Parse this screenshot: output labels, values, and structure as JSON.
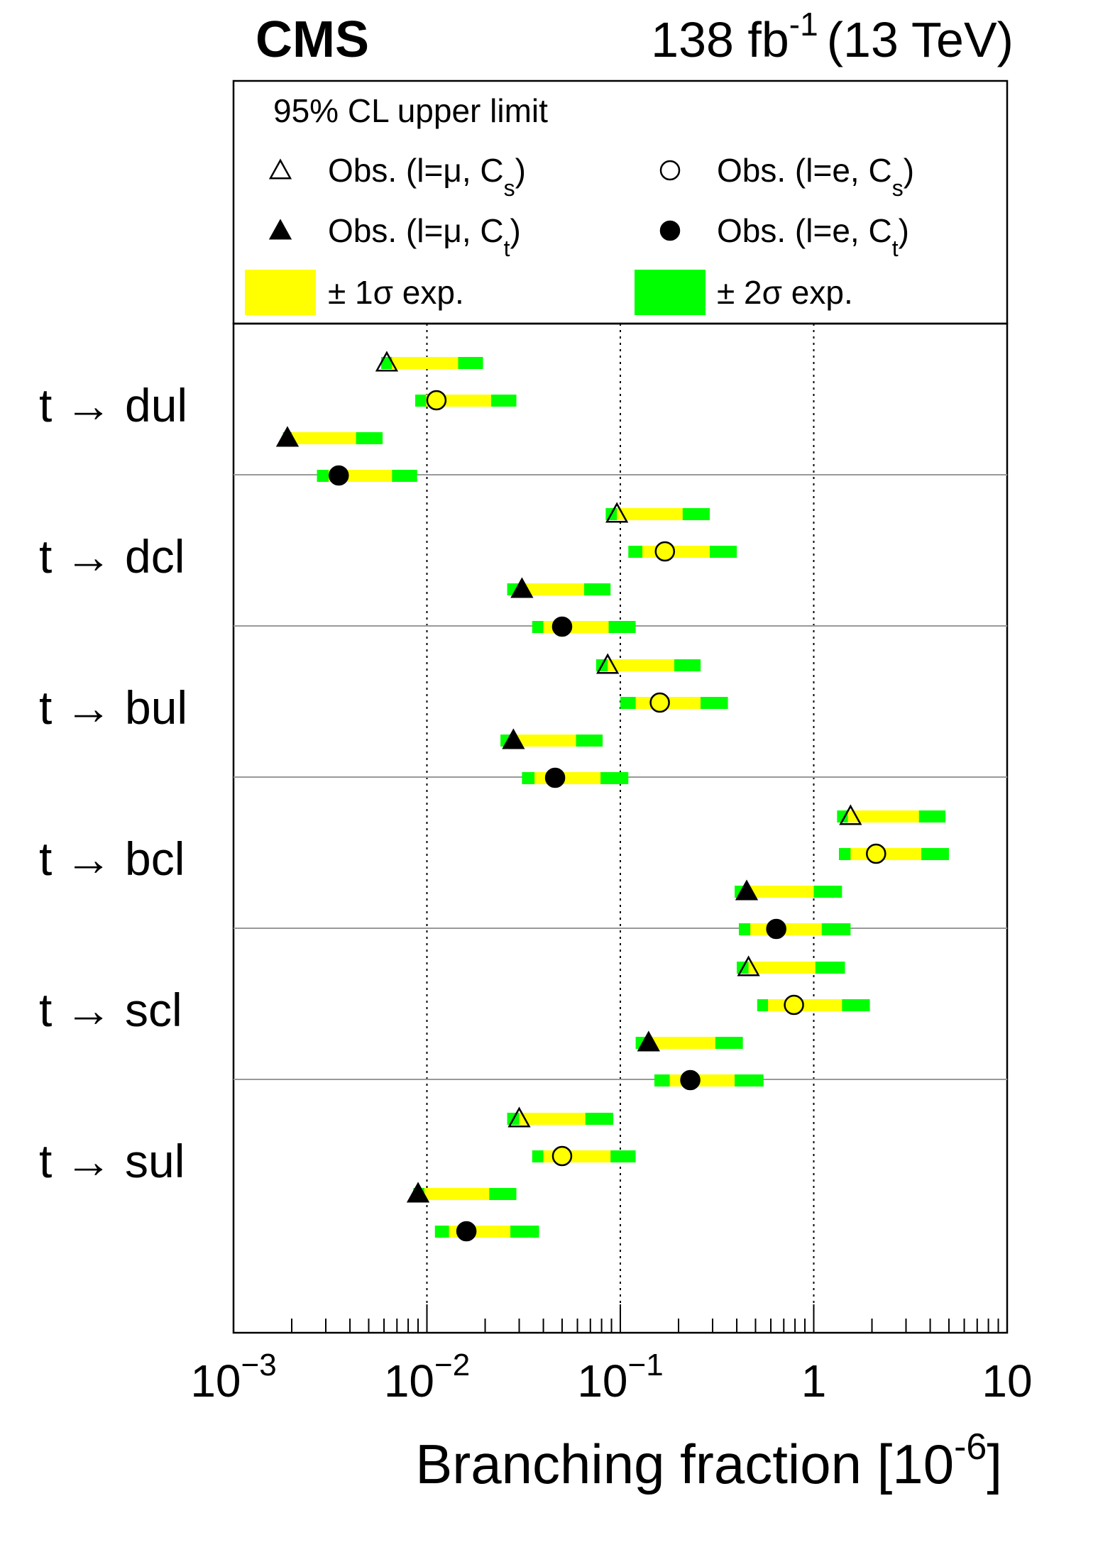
{
  "header": {
    "experiment": "CMS",
    "lumi_value": "138 fb",
    "lumi_exp": "-1",
    "energy": "(13 TeV)"
  },
  "legend": {
    "title": "95% CL upper limit",
    "entries": [
      {
        "key": "obs_mu_cs",
        "prefix": "Obs. (l=μ, C",
        "sub": "s",
        "suffix": ")",
        "marker": "open-triangle"
      },
      {
        "key": "obs_e_cs",
        "prefix": "Obs. (l=e, C",
        "sub": "s",
        "suffix": ")",
        "marker": "open-circle"
      },
      {
        "key": "obs_mu_ct",
        "prefix": "Obs. (l=μ, C",
        "sub": "t",
        "suffix": ")",
        "marker": "filled-triangle"
      },
      {
        "key": "obs_e_ct",
        "prefix": "Obs. (l=e, C",
        "sub": "t",
        "suffix": ")",
        "marker": "filled-circle"
      },
      {
        "key": "one_sigma",
        "label": "± 1σ exp.",
        "color": "#ffff00"
      },
      {
        "key": "two_sigma",
        "label": "± 2σ exp.",
        "color": "#00ff00"
      }
    ]
  },
  "colors": {
    "one_sigma": "#ffff00",
    "two_sigma": "#00ff00",
    "marker": "#000000",
    "separator": "#999999"
  },
  "chart_data": {
    "type": "scatter",
    "xscale": "log",
    "xlim": [
      0.001,
      10
    ],
    "xlabel_text": "Branching fraction [10",
    "xlabel_exp": "-6",
    "xlabel_suffix": "]",
    "xticks": [
      {
        "value": 0.001,
        "base": "10",
        "exp": "−3"
      },
      {
        "value": 0.01,
        "base": "10",
        "exp": "−2"
      },
      {
        "value": 0.1,
        "base": "10",
        "exp": "−1"
      },
      {
        "value": 1,
        "base": "1",
        "exp": ""
      },
      {
        "value": 10,
        "base": "10",
        "exp": ""
      }
    ],
    "gridlines_x": [
      0.01,
      0.1,
      1
    ],
    "series_order": [
      "obs_mu_cs",
      "obs_e_cs",
      "obs_mu_ct",
      "obs_e_ct"
    ],
    "markers": {
      "obs_mu_cs": "open-triangle",
      "obs_e_cs": "open-circle",
      "obs_mu_ct": "filled-triangle",
      "obs_e_ct": "filled-circle"
    },
    "categories": [
      {
        "label": "t → dul",
        "points": [
          {
            "series": "obs_mu_cs",
            "obs": 0.0062,
            "two_lo": 0.0058,
            "one_lo": 0.0066,
            "one_hi": 0.0145,
            "two_hi": 0.0195
          },
          {
            "series": "obs_e_cs",
            "obs": 0.0112,
            "two_lo": 0.0087,
            "one_lo": 0.0099,
            "one_hi": 0.0215,
            "two_hi": 0.029
          },
          {
            "series": "obs_mu_ct",
            "obs": 0.0019,
            "two_lo": 0.0018,
            "one_lo": 0.002,
            "one_hi": 0.0043,
            "two_hi": 0.0059
          },
          {
            "series": "obs_e_ct",
            "obs": 0.0035,
            "two_lo": 0.0027,
            "one_lo": 0.0031,
            "one_hi": 0.0066,
            "two_hi": 0.0089
          }
        ]
      },
      {
        "label": "t → dcl",
        "points": [
          {
            "series": "obs_mu_cs",
            "obs": 0.096,
            "two_lo": 0.084,
            "one_lo": 0.096,
            "one_hi": 0.21,
            "two_hi": 0.29
          },
          {
            "series": "obs_e_cs",
            "obs": 0.17,
            "two_lo": 0.11,
            "one_lo": 0.13,
            "one_hi": 0.29,
            "two_hi": 0.4
          },
          {
            "series": "obs_mu_ct",
            "obs": 0.031,
            "two_lo": 0.026,
            "one_lo": 0.03,
            "one_hi": 0.065,
            "two_hi": 0.089
          },
          {
            "series": "obs_e_ct",
            "obs": 0.05,
            "two_lo": 0.035,
            "one_lo": 0.04,
            "one_hi": 0.087,
            "two_hi": 0.12
          }
        ]
      },
      {
        "label": "t → bul",
        "points": [
          {
            "series": "obs_mu_cs",
            "obs": 0.086,
            "two_lo": 0.075,
            "one_lo": 0.086,
            "one_hi": 0.19,
            "two_hi": 0.26
          },
          {
            "series": "obs_e_cs",
            "obs": 0.16,
            "two_lo": 0.1,
            "one_lo": 0.12,
            "one_hi": 0.26,
            "two_hi": 0.36
          },
          {
            "series": "obs_mu_ct",
            "obs": 0.028,
            "two_lo": 0.024,
            "one_lo": 0.027,
            "one_hi": 0.059,
            "two_hi": 0.081
          },
          {
            "series": "obs_e_ct",
            "obs": 0.046,
            "two_lo": 0.031,
            "one_lo": 0.036,
            "one_hi": 0.079,
            "two_hi": 0.11
          }
        ]
      },
      {
        "label": "t → bcl",
        "points": [
          {
            "series": "obs_mu_cs",
            "obs": 1.55,
            "two_lo": 1.32,
            "one_lo": 1.5,
            "one_hi": 3.5,
            "two_hi": 4.8
          },
          {
            "series": "obs_e_cs",
            "obs": 2.1,
            "two_lo": 1.35,
            "one_lo": 1.55,
            "one_hi": 3.6,
            "two_hi": 5.0
          },
          {
            "series": "obs_mu_ct",
            "obs": 0.45,
            "two_lo": 0.39,
            "one_lo": 0.45,
            "one_hi": 1.0,
            "two_hi": 1.4
          },
          {
            "series": "obs_e_ct",
            "obs": 0.64,
            "two_lo": 0.41,
            "one_lo": 0.47,
            "one_hi": 1.1,
            "two_hi": 1.55
          }
        ]
      },
      {
        "label": "t → scl",
        "points": [
          {
            "series": "obs_mu_cs",
            "obs": 0.46,
            "two_lo": 0.4,
            "one_lo": 0.46,
            "one_hi": 1.02,
            "two_hi": 1.45
          },
          {
            "series": "obs_e_cs",
            "obs": 0.79,
            "two_lo": 0.51,
            "one_lo": 0.58,
            "one_hi": 1.4,
            "two_hi": 1.95
          },
          {
            "series": "obs_mu_ct",
            "obs": 0.14,
            "two_lo": 0.12,
            "one_lo": 0.14,
            "one_hi": 0.31,
            "two_hi": 0.43
          },
          {
            "series": "obs_e_ct",
            "obs": 0.23,
            "two_lo": 0.15,
            "one_lo": 0.18,
            "one_hi": 0.39,
            "two_hi": 0.55
          }
        ]
      },
      {
        "label": "t → sul",
        "points": [
          {
            "series": "obs_mu_cs",
            "obs": 0.03,
            "two_lo": 0.026,
            "one_lo": 0.03,
            "one_hi": 0.066,
            "two_hi": 0.092
          },
          {
            "series": "obs_e_cs",
            "obs": 0.05,
            "two_lo": 0.035,
            "one_lo": 0.04,
            "one_hi": 0.089,
            "two_hi": 0.12
          },
          {
            "series": "obs_mu_ct",
            "obs": 0.009,
            "two_lo": 0.0085,
            "one_lo": 0.0097,
            "one_hi": 0.021,
            "two_hi": 0.029
          },
          {
            "series": "obs_e_ct",
            "obs": 0.016,
            "two_lo": 0.011,
            "one_lo": 0.013,
            "one_hi": 0.027,
            "two_hi": 0.038
          }
        ]
      }
    ]
  }
}
